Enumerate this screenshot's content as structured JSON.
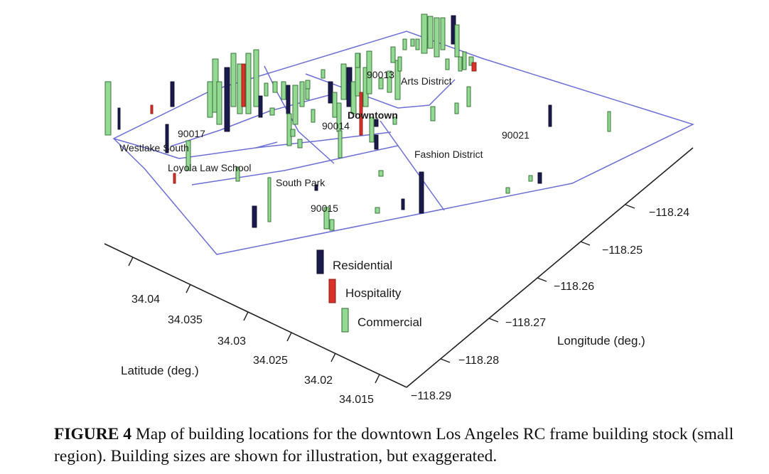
{
  "chart_data": {
    "type": "3d-bar-map",
    "xlabel": "Latitude (deg.)",
    "ylabel": "Longitude (deg.)",
    "latitude_ticks": [
      "34.04",
      "34.035",
      "34.03",
      "34.025",
      "34.02",
      "34.015"
    ],
    "longitude_ticks": [
      "−118.29",
      "−118.28",
      "−118.27",
      "−118.26",
      "−118.25",
      "−118.24"
    ],
    "legend": [
      {
        "label": "Residential",
        "color": "#1b1a4d"
      },
      {
        "label": "Hospitality",
        "color": "#d9322a"
      },
      {
        "label": "Commercial",
        "color": "#93d893"
      }
    ],
    "region_labels": [
      "Westlake South",
      "90017",
      "Loyola Law School",
      "South Park",
      "90015",
      "Downtown",
      "90014",
      "90013",
      "Arts District",
      "Fashion District",
      "90021"
    ]
  },
  "caption": {
    "label": "FIGURE 4",
    "text": "Map of building locations for the downtown Los Angeles RC frame building stock (small region). Building sizes are shown for illustration, but exaggerated."
  }
}
